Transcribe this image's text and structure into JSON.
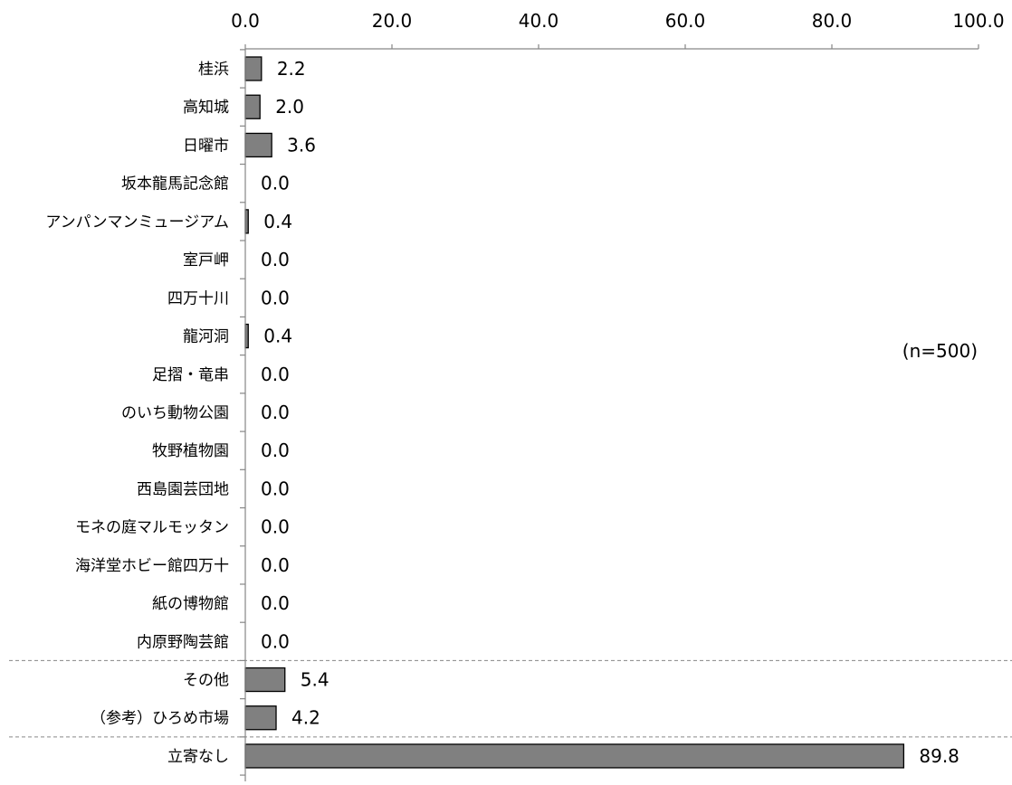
{
  "chart_data": {
    "type": "bar",
    "orientation": "horizontal",
    "title": "",
    "xlabel": "",
    "ylabel": "",
    "xlim": [
      0,
      100
    ],
    "x_ticks": [
      0,
      20,
      40,
      60,
      80,
      100
    ],
    "x_tick_labels": [
      "0.0",
      "20.0",
      "40.0",
      "60.0",
      "80.0",
      "100.0"
    ],
    "x_axis_position": "top",
    "grid": false,
    "categories": [
      "桂浜",
      "高知城",
      "日曜市",
      "坂本龍馬記念館",
      "アンパンマンミュージアム",
      "室戸岬",
      "四万十川",
      "龍河洞",
      "足摺・竜串",
      "のいち動物公園",
      "牧野植物園",
      "西島園芸団地",
      "モネの庭マルモッタン",
      "海洋堂ホビー館四万十",
      "紙の博物館",
      "内原野陶芸館",
      "その他",
      "（参考）ひろめ市場",
      "立寄なし"
    ],
    "values": [
      2.2,
      2.0,
      3.6,
      0.0,
      0.4,
      0.0,
      0.0,
      0.4,
      0.0,
      0.0,
      0.0,
      0.0,
      0.0,
      0.0,
      0.0,
      0.0,
      5.4,
      4.2,
      89.8
    ],
    "value_labels": [
      "2.2",
      "2.0",
      "3.6",
      "0.0",
      "0.4",
      "0.0",
      "0.0",
      "0.4",
      "0.0",
      "0.0",
      "0.0",
      "0.0",
      "0.0",
      "0.0",
      "0.0",
      "0.0",
      "5.4",
      "4.2",
      "89.8"
    ],
    "separator_after_index": [
      15,
      17
    ],
    "annotation": "(n=500)",
    "bar_color": "#808080",
    "bar_edge_color": "#000000"
  }
}
